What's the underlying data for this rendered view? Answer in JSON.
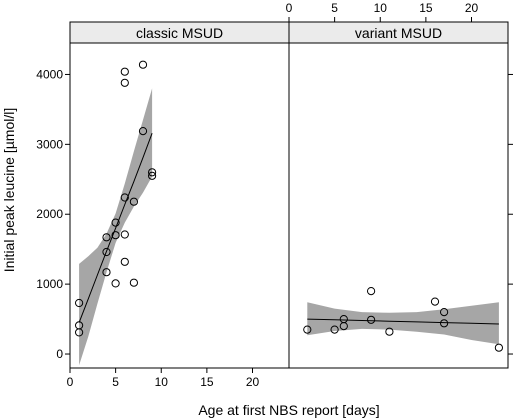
{
  "chart_data": {
    "type": "scatter",
    "xlabel": "Age at first NBS report [days]",
    "ylabel": "Initial peak leucine [µmol/l]",
    "xlim": [
      0,
      24
    ],
    "ylim": [
      -200,
      4450
    ],
    "x_ticks": [
      0,
      5,
      10,
      15,
      20
    ],
    "y_ticks": [
      0,
      1000,
      2000,
      3000,
      4000
    ],
    "grid": false,
    "panels": [
      {
        "strip": "classic MSUD",
        "points": [
          {
            "x": 1,
            "y": 730
          },
          {
            "x": 1,
            "y": 410
          },
          {
            "x": 1,
            "y": 310
          },
          {
            "x": 4,
            "y": 1670
          },
          {
            "x": 4,
            "y": 1460
          },
          {
            "x": 4,
            "y": 1170
          },
          {
            "x": 5,
            "y": 1880
          },
          {
            "x": 5,
            "y": 1700
          },
          {
            "x": 5,
            "y": 1010
          },
          {
            "x": 6,
            "y": 4040
          },
          {
            "x": 6,
            "y": 3880
          },
          {
            "x": 6,
            "y": 2240
          },
          {
            "x": 6,
            "y": 1710
          },
          {
            "x": 6,
            "y": 1320
          },
          {
            "x": 7,
            "y": 2180
          },
          {
            "x": 7,
            "y": 1020
          },
          {
            "x": 8,
            "y": 4140
          },
          {
            "x": 8,
            "y": 3190
          },
          {
            "x": 9,
            "y": 2600
          },
          {
            "x": 9,
            "y": 2550
          }
        ],
        "fit": [
          {
            "x": 1,
            "y": 450,
            "lo": -160,
            "hi": 1290
          },
          {
            "x": 2,
            "y": 790,
            "lo": 250,
            "hi": 1400
          },
          {
            "x": 3,
            "y": 1130,
            "lo": 720,
            "hi": 1520
          },
          {
            "x": 4,
            "y": 1470,
            "lo": 1170,
            "hi": 1720
          },
          {
            "x": 5,
            "y": 1800,
            "lo": 1590,
            "hi": 2010
          },
          {
            "x": 6,
            "y": 2140,
            "lo": 1880,
            "hi": 2440
          },
          {
            "x": 7,
            "y": 2470,
            "lo": 2110,
            "hi": 2900
          },
          {
            "x": 8,
            "y": 2810,
            "lo": 2310,
            "hi": 3350
          },
          {
            "x": 9,
            "y": 3160,
            "lo": 2540,
            "hi": 3800
          }
        ]
      },
      {
        "strip": "variant MSUD",
        "points": [
          {
            "x": 2,
            "y": 350
          },
          {
            "x": 5,
            "y": 350
          },
          {
            "x": 6,
            "y": 500
          },
          {
            "x": 6,
            "y": 400
          },
          {
            "x": 9,
            "y": 900
          },
          {
            "x": 9,
            "y": 490
          },
          {
            "x": 11,
            "y": 320
          },
          {
            "x": 16,
            "y": 750
          },
          {
            "x": 17,
            "y": 600
          },
          {
            "x": 17,
            "y": 440
          },
          {
            "x": 23,
            "y": 90
          }
        ],
        "fit": [
          {
            "x": 2,
            "y": 500,
            "lo": 270,
            "hi": 740
          },
          {
            "x": 5,
            "y": 490,
            "lo": 330,
            "hi": 650
          },
          {
            "x": 8,
            "y": 480,
            "lo": 360,
            "hi": 600
          },
          {
            "x": 11,
            "y": 470,
            "lo": 350,
            "hi": 590
          },
          {
            "x": 14,
            "y": 460,
            "lo": 320,
            "hi": 600
          },
          {
            "x": 17,
            "y": 450,
            "lo": 280,
            "hi": 640
          },
          {
            "x": 20,
            "y": 440,
            "lo": 200,
            "hi": 690
          },
          {
            "x": 23,
            "y": 430,
            "lo": 140,
            "hi": 740
          }
        ]
      }
    ]
  }
}
